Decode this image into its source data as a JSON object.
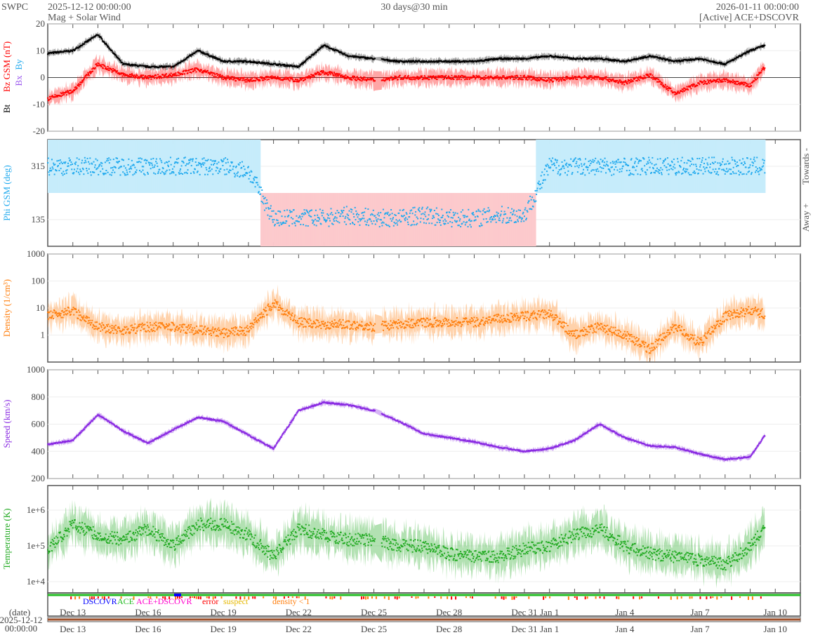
{
  "header": {
    "org": "SWPC",
    "start": "2025-12-12 00:00:00",
    "subtitle": "Mag + Solar Wind",
    "span": "30 days@30 min",
    "end": "2026-01-11 00:00:00",
    "source": "[Active] ACE+DSCOVR"
  },
  "legend": {
    "dscovr": "DSCOVR",
    "ace": "ACE",
    "both": "ACE+DSCOVR",
    "error": "error",
    "suspect": "suspect",
    "density": "density < 1"
  },
  "date_axis": {
    "label": "(date)",
    "date": "2025-12-12",
    "time": "00:00:00",
    "ticks": [
      {
        "day": 1,
        "label": "Dec 13"
      },
      {
        "day": 4,
        "label": "Dec 16"
      },
      {
        "day": 7,
        "label": "Dec 19"
      },
      {
        "day": 10,
        "label": "Dec 22"
      },
      {
        "day": 13,
        "label": "Dec 25"
      },
      {
        "day": 16,
        "label": "Dec 28"
      },
      {
        "day": 19,
        "label": "Dec 31"
      },
      {
        "day": 20,
        "label": "Jan 1"
      },
      {
        "day": 23,
        "label": "Jan 4"
      },
      {
        "day": 26,
        "label": "Jan 7"
      },
      {
        "day": 29,
        "label": "Jan 10"
      }
    ]
  },
  "colors": {
    "bt": "#000000",
    "bz": "#ff0000",
    "bx": "#9955ee",
    "by": "#22aaee",
    "phi": "#22aaee",
    "density": "#ff7f0e",
    "speed": "#8a2be2",
    "temp": "#22aa22"
  },
  "chart_data": [
    {
      "type": "line",
      "title": "Magnetic field",
      "ylabel_bt": "Bt",
      "ylabel_bz": "Bz GSM (nT)",
      "ylabel_bx": "Bx",
      "ylabel_by": "By",
      "ylim": [
        -20,
        20
      ],
      "yticks": [
        "20",
        "10",
        "0",
        "-10",
        "-20"
      ],
      "x_days": [
        0,
        1,
        2,
        3,
        4,
        5,
        6,
        7,
        8,
        9,
        10,
        11,
        12,
        13,
        14,
        15,
        16,
        17,
        18,
        19,
        20,
        21,
        22,
        23,
        24,
        25,
        26,
        27,
        28,
        28.6
      ],
      "series": [
        {
          "name": "Bt",
          "values": [
            9,
            10,
            16,
            5,
            4,
            4,
            10,
            6,
            6,
            5,
            4,
            12,
            8,
            7,
            6,
            6,
            6,
            6,
            7,
            7,
            8,
            7,
            7,
            6,
            8,
            6,
            7,
            5,
            10,
            12
          ]
        },
        {
          "name": "Bz",
          "values": [
            -8,
            -5,
            5,
            1,
            0,
            1,
            3,
            0,
            -1,
            0,
            -1,
            2,
            0,
            -1,
            0,
            0,
            0,
            0,
            0,
            0,
            -1,
            0,
            0,
            -2,
            1,
            -6,
            -2,
            -1,
            -3,
            4
          ]
        }
      ]
    },
    {
      "type": "scatter",
      "title": "Phi",
      "ylabel": "Phi GSM (deg)",
      "ylim": [
        45,
        405
      ],
      "yticks": [
        "315",
        "135"
      ],
      "right_top": "Towards -",
      "right_bottom": "Away +",
      "x_days": [
        0,
        1,
        2,
        3,
        4,
        5,
        6,
        7,
        8,
        9,
        10,
        11,
        12,
        13,
        14,
        15,
        16,
        17,
        18,
        19,
        20,
        21,
        22,
        23,
        24,
        25,
        26,
        27,
        28,
        28.6
      ],
      "values": [
        315,
        315,
        315,
        315,
        315,
        315,
        315,
        315,
        300,
        140,
        140,
        140,
        150,
        140,
        140,
        150,
        140,
        140,
        150,
        150,
        315,
        315,
        315,
        315,
        315,
        315,
        315,
        315,
        315,
        315
      ]
    },
    {
      "type": "line",
      "title": "Density",
      "ylabel": "Density (1/cm³)",
      "scale": "log",
      "ylim": [
        0.1,
        1000
      ],
      "yticks": [
        "1000",
        "100",
        "10",
        "1"
      ],
      "x_days": [
        0,
        1,
        2,
        3,
        4,
        5,
        6,
        7,
        8,
        9,
        10,
        11,
        12,
        13,
        14,
        15,
        16,
        17,
        18,
        19,
        20,
        21,
        22,
        23,
        24,
        25,
        26,
        27,
        28,
        28.6
      ],
      "values": [
        5,
        8,
        2,
        1.5,
        2,
        2,
        1.5,
        1.2,
        1.5,
        15,
        3,
        2.5,
        2.5,
        2,
        2.5,
        3,
        3,
        3,
        4,
        5,
        6,
        1,
        2,
        1,
        0.3,
        2,
        0.5,
        5,
        8,
        6
      ]
    },
    {
      "type": "line",
      "title": "Speed",
      "ylabel": "Speed (km/s)",
      "ylim": [
        200,
        1000
      ],
      "yticks": [
        "1000",
        "800",
        "600",
        "400",
        "200"
      ],
      "x_days": [
        0,
        1,
        2,
        3,
        4,
        5,
        6,
        7,
        8,
        9,
        10,
        11,
        12,
        13,
        14,
        15,
        16,
        17,
        18,
        19,
        20,
        21,
        22,
        23,
        24,
        25,
        26,
        27,
        28,
        28.6
      ],
      "values": [
        450,
        480,
        670,
        550,
        460,
        560,
        650,
        620,
        520,
        420,
        700,
        760,
        740,
        700,
        620,
        530,
        500,
        470,
        430,
        400,
        420,
        480,
        600,
        500,
        440,
        430,
        380,
        340,
        360,
        520
      ]
    },
    {
      "type": "line",
      "title": "Temperature",
      "ylabel": "Temperature (K)",
      "scale": "log",
      "ylim": [
        5000,
        4800000
      ],
      "yticks": [
        "1e+6",
        "1e+5",
        "1e+4"
      ],
      "x_days": [
        0,
        1,
        2,
        3,
        4,
        5,
        6,
        7,
        8,
        9,
        10,
        11,
        12,
        13,
        14,
        15,
        16,
        17,
        18,
        19,
        20,
        21,
        22,
        23,
        24,
        25,
        26,
        27,
        28,
        28.6
      ],
      "values": [
        80000,
        400000,
        200000,
        150000,
        300000,
        100000,
        400000,
        400000,
        200000,
        50000,
        300000,
        200000,
        150000,
        150000,
        100000,
        100000,
        60000,
        50000,
        50000,
        80000,
        100000,
        200000,
        300000,
        100000,
        60000,
        50000,
        40000,
        30000,
        100000,
        300000
      ]
    }
  ]
}
